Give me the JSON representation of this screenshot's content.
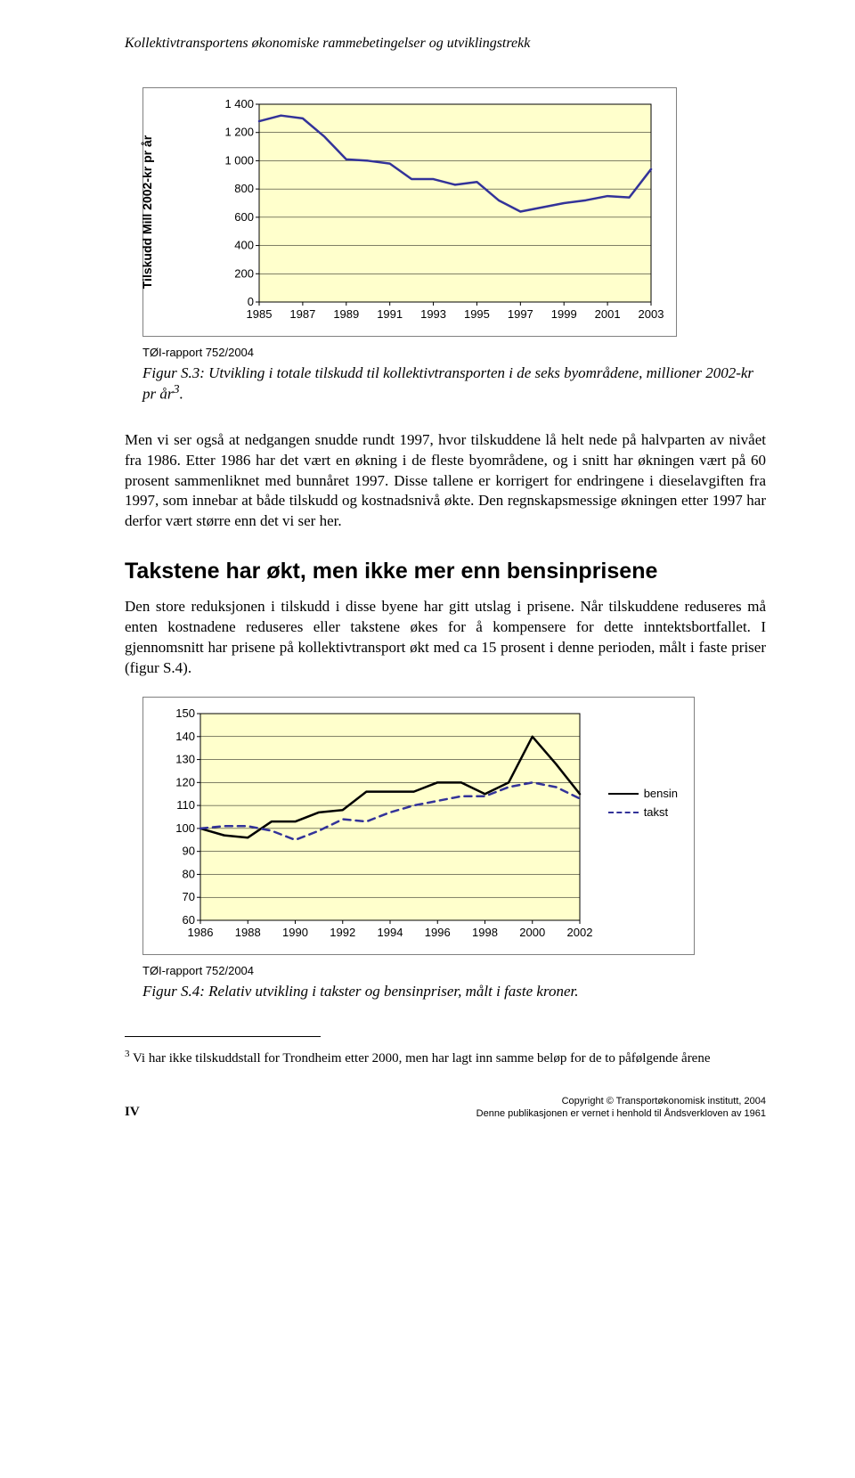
{
  "running_head": "Kollektivtransportens økonomiske rammebetingelser og utviklingstrekk",
  "chart1": {
    "type": "line",
    "ylabel": "Tilskudd Mill 2002-kr pr år",
    "bg": "#ffffcc",
    "grid": "#000000",
    "line_color": "#333399",
    "line_width": 2.5,
    "tick_font": 13,
    "ylim": [
      0,
      1400
    ],
    "ytick_step": 200,
    "yticks": [
      "0",
      "200",
      "400",
      "600",
      "800",
      "1 000",
      "1 200",
      "1 400"
    ],
    "x_years": [
      1985,
      1986,
      1987,
      1988,
      1989,
      1990,
      1991,
      1992,
      1993,
      1994,
      1995,
      1996,
      1997,
      1998,
      1999,
      2000,
      2001,
      2002,
      2003
    ],
    "xticks": [
      "1985",
      "1987",
      "1989",
      "1991",
      "1993",
      "1995",
      "1997",
      "1999",
      "2001",
      "2003"
    ],
    "values": [
      1280,
      1320,
      1300,
      1170,
      1010,
      1000,
      980,
      870,
      870,
      830,
      850,
      720,
      640,
      670,
      700,
      720,
      750,
      740,
      940
    ]
  },
  "source1": "TØI-rapport 752/2004",
  "figcap1_label": "Figur S.3: ",
  "figcap1_rest": "Utvikling i totale tilskudd til kollektivtransporten i de seks byområdene, millioner 2002-kr pr år",
  "figcap1_sup": "3",
  "figcap1_end": ".",
  "para1": "Men vi ser også at nedgangen snudde rundt 1997, hvor tilskuddene lå helt nede på halvparten av nivået fra 1986. Etter 1986 har det vært en økning i de fleste byområdene, og i snitt har økningen vært på 60 prosent sammenliknet med bunnåret 1997. Disse tallene er korrigert for endringene i dieselavgiften fra 1997, som innebar at både tilskudd og kostnadsnivå økte. Den regnskapsmessige økningen etter 1997 har derfor vært større enn det vi ser her.",
  "h2": "Takstene har økt, men ikke mer enn bensinprisene",
  "para2": "Den store reduksjonen i tilskudd i disse byene har gitt utslag i prisene. Når tilskuddene reduseres må enten kostnadene reduseres eller takstene økes for å kompensere for dette inntektsbortfallet. I gjennomsnitt har prisene på kollektivtransport økt med ca 15 prosent i denne perioden, målt i faste priser (figur S.4).",
  "chart2": {
    "type": "line",
    "bg": "#ffffcc",
    "grid": "#000000",
    "tick_font": 13,
    "ylim": [
      60,
      150
    ],
    "ytick_step": 10,
    "yticks": [
      "60",
      "70",
      "80",
      "90",
      "100",
      "110",
      "120",
      "130",
      "140",
      "150"
    ],
    "x_years": [
      1986,
      1987,
      1988,
      1989,
      1990,
      1991,
      1992,
      1993,
      1994,
      1995,
      1996,
      1997,
      1998,
      1999,
      2000,
      2001,
      2002
    ],
    "xticks": [
      "1986",
      "1988",
      "1990",
      "1992",
      "1994",
      "1996",
      "1998",
      "2000",
      "2002"
    ],
    "series": [
      {
        "name": "bensin",
        "color": "#000000",
        "dash": "none",
        "width": 2.5,
        "values": [
          100,
          97,
          96,
          103,
          103,
          107,
          108,
          116,
          116,
          116,
          120,
          120,
          115,
          120,
          140,
          128,
          115
        ]
      },
      {
        "name": "takst",
        "color": "#333399",
        "dash": "8 6",
        "width": 2.5,
        "values": [
          100,
          101,
          101,
          99,
          95,
          99,
          104,
          103,
          107,
          110,
          112,
          114,
          114,
          118,
          120,
          118,
          113
        ]
      }
    ],
    "legend": [
      "bensin",
      "takst"
    ]
  },
  "source2": "TØI-rapport 752/2004",
  "figcap2_label": "Figur S.4: ",
  "figcap2_rest": "Relativ utvikling i takster og bensinpriser, målt i faste kroner.",
  "footnote_sup": "3",
  "footnote_text": " Vi har ikke tilskuddstall  for Trondheim etter 2000, men har lagt inn samme beløp for de to påfølgende årene",
  "page_number": "IV",
  "copyright1": "Copyright © Transportøkonomisk institutt, 2004",
  "copyright2": "Denne publikasjonen er vernet i henhold til Åndsverkloven av 1961"
}
